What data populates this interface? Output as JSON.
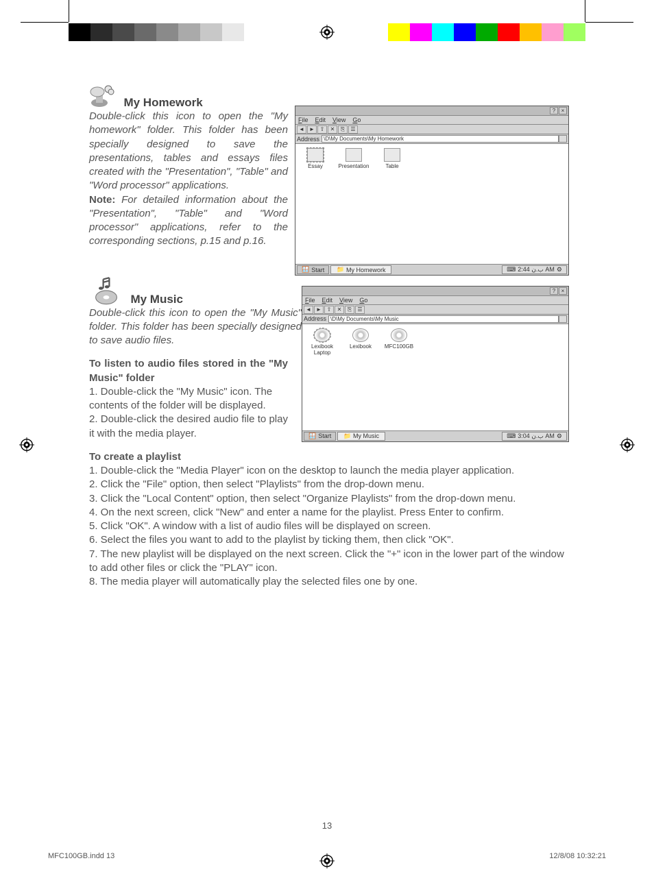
{
  "registration": {
    "grayscale": [
      "#000000",
      "#2b2b2b",
      "#4a4a4a",
      "#6a6a6a",
      "#8a8a8a",
      "#aaaaaa",
      "#c8c8c8",
      "#e8e8e8",
      "#ffffff"
    ],
    "colors": [
      "#ffff00",
      "#ff00ff",
      "#00ffff",
      "#0000ff",
      "#00aa00",
      "#ff0000",
      "#ffc000",
      "#ff9ecf",
      "#a0ff60"
    ]
  },
  "sections": {
    "homework": {
      "heading": "My Homework",
      "p1": "Double-click this icon to open the \"My homework\" folder. This folder has been specially designed to save the presentations, tables and essays files created with the \"Presentation\", \"Table\" and \"Word processor\" applications.",
      "note_label": "Note:",
      "note_body": " For detailed information about the \"Presentation\", \"Table\" and \"Word processor\" applications, refer to the corresponding sections, p.15 and p.16."
    },
    "music": {
      "heading": "My Music",
      "p1": "Double-click this icon to open the \"My Music\" folder. This folder has been specially designed to save audio files.",
      "sub1_heading": "To listen to audio files stored in the \"My Music\" folder",
      "sub1_step1": "1. Double-click the \"My Music\" icon. The contents of the folder will be displayed.",
      "sub1_step2": "2. Double-click the desired audio file to play it with the media player.",
      "sub2_heading": "To create a playlist",
      "steps": [
        "1. Double-click the \"Media Player\" icon on the desktop to launch the media player application.",
        "2. Click the \"File\" option, then select \"Playlists\" from the drop-down menu.",
        "3. Click the \"Local Content\" option, then select \"Organize Playlists\" from the drop-down menu.",
        "4. On the next screen, click \"New\" and enter a name for the playlist. Press Enter to confirm.",
        "5. Click \"OK\". A window with a list of audio files will be displayed on screen.",
        "6. Select the files you want to add to the playlist by ticking them, then click \"OK\".",
        "7. The new playlist will be displayed on the next screen.  Click the \"+\" icon in the lower part of the window to add other files or click the \"PLAY\" icon.",
        "8. The media player will automatically play the selected files one by one."
      ]
    }
  },
  "screenshot1": {
    "menu": [
      "File",
      "Edit",
      "View",
      "Go"
    ],
    "address_label": "Address",
    "address_path": "\\D\\My Documents\\My Homework",
    "icons": [
      {
        "label": "Essay",
        "selected": true
      },
      {
        "label": "Presentation",
        "selected": false
      },
      {
        "label": "Table",
        "selected": false
      }
    ],
    "start": "Start",
    "task": "My Homework",
    "tray": "ب.ن 2:44 AM",
    "help": "?",
    "close": "×"
  },
  "screenshot2": {
    "menu": [
      "File",
      "Edit",
      "View",
      "Go"
    ],
    "address_label": "Address",
    "address_path": "\\D\\My Documents\\My Music",
    "icons": [
      {
        "label": "Lexibook Laptop",
        "selected": true
      },
      {
        "label": "Lexibook",
        "selected": false
      },
      {
        "label": "MFC100GB",
        "selected": false
      }
    ],
    "start": "Start",
    "task": "My Music",
    "tray": "ب.ن 3:04 AM",
    "help": "?",
    "close": "×"
  },
  "page_number": "13",
  "footer": {
    "left": "MFC100GB.indd   13",
    "right": "12/8/08   10:32:21"
  }
}
